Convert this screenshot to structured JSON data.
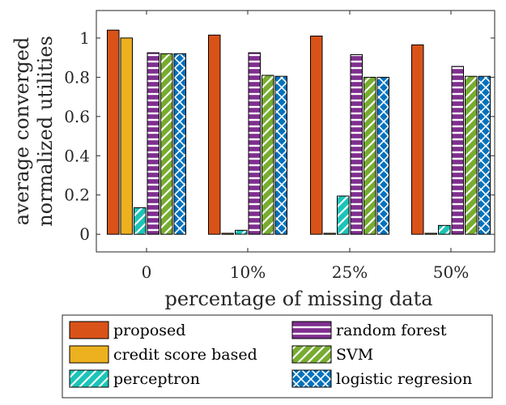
{
  "chart_data": {
    "type": "bar",
    "categories": [
      "0",
      "10%",
      "25%",
      "50%"
    ],
    "xlabel": "percentage of missing data",
    "ylabel": [
      "average converged",
      "normalized utilities"
    ],
    "ylim": [
      -0.09,
      1.14
    ],
    "yticks": [
      0,
      0.2,
      0.4,
      0.6,
      0.8,
      1
    ],
    "ytick_labels": [
      "0",
      "0.2",
      "0.4",
      "0.6",
      "0.8",
      "1"
    ],
    "grid": false,
    "legend_position": "bottom-outside",
    "series": [
      {
        "name": "proposed",
        "color": "#D95319",
        "pattern": "solid",
        "values": [
          1.04,
          1.015,
          1.01,
          0.965
        ]
      },
      {
        "name": "credit score based",
        "color": "#EDB120",
        "pattern": "solid",
        "values": [
          1.0,
          0.005,
          0.005,
          0.005
        ]
      },
      {
        "name": "perceptron",
        "color": "#1BC4B8",
        "pattern": "diagonal",
        "values": [
          0.135,
          0.02,
          0.195,
          0.045
        ]
      },
      {
        "name": "random forest",
        "color": "#7E2F8E",
        "pattern": "horizontal",
        "values": [
          0.925,
          0.925,
          0.915,
          0.855
        ]
      },
      {
        "name": "SVM",
        "color": "#77AC30",
        "pattern": "diagonal",
        "values": [
          0.92,
          0.81,
          0.8,
          0.805
        ]
      },
      {
        "name": "logistic regresion",
        "color": "#0072BD",
        "pattern": "cross",
        "values": [
          0.92,
          0.805,
          0.8,
          0.805
        ]
      }
    ]
  }
}
